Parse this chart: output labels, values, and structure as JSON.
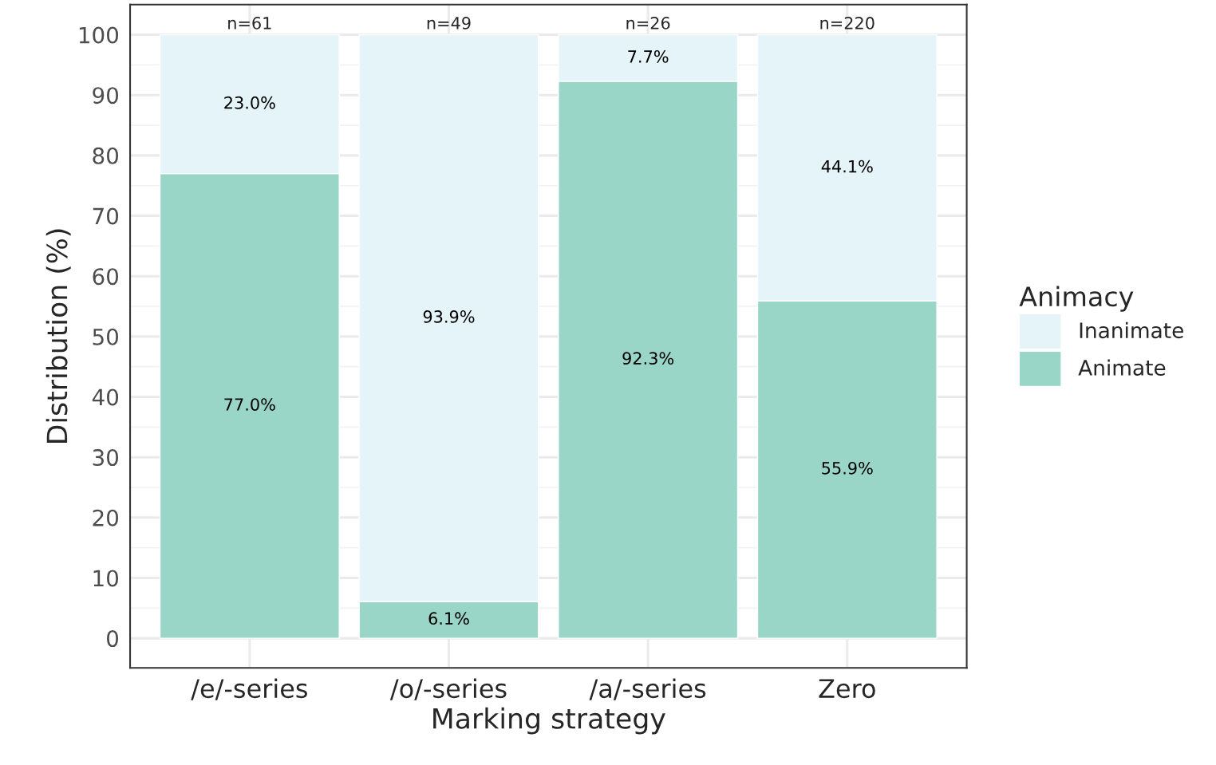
{
  "chart_data": {
    "type": "bar",
    "stacked": true,
    "xlabel": "Marking strategy",
    "ylabel": "Distribution (%)",
    "legend_title": "Animacy",
    "legend": "right",
    "categories": [
      "/e/-series",
      "/o/-series",
      "/a/-series",
      "Zero"
    ],
    "series": [
      {
        "name": "Animate",
        "color": "#99d6c8",
        "values": [
          77.0,
          6.1,
          92.3,
          55.9
        ],
        "value_labels": [
          "77.0%",
          "6.1%",
          "92.3%",
          "55.9%"
        ]
      },
      {
        "name": "Inanimate",
        "color": "#e5f4f9",
        "values": [
          23.0,
          93.9,
          7.7,
          44.1
        ],
        "value_labels": [
          "23.0%",
          "93.9%",
          "7.7%",
          "44.1%"
        ]
      }
    ],
    "annotations": [
      {
        "text": "n=61",
        "x": "/e/-series",
        "y": 100
      },
      {
        "text": "n=49",
        "x": "/o/-series",
        "y": 100
      },
      {
        "text": "n=26",
        "x": "/a/-series",
        "y": 100
      },
      {
        "text": "n=220",
        "x": "Zero",
        "y": 100
      }
    ],
    "ylim": [
      -4.9,
      105
    ],
    "yticks": [
      0,
      10,
      20,
      30,
      40,
      50,
      60,
      70,
      80,
      90,
      100
    ],
    "grid": true
  }
}
